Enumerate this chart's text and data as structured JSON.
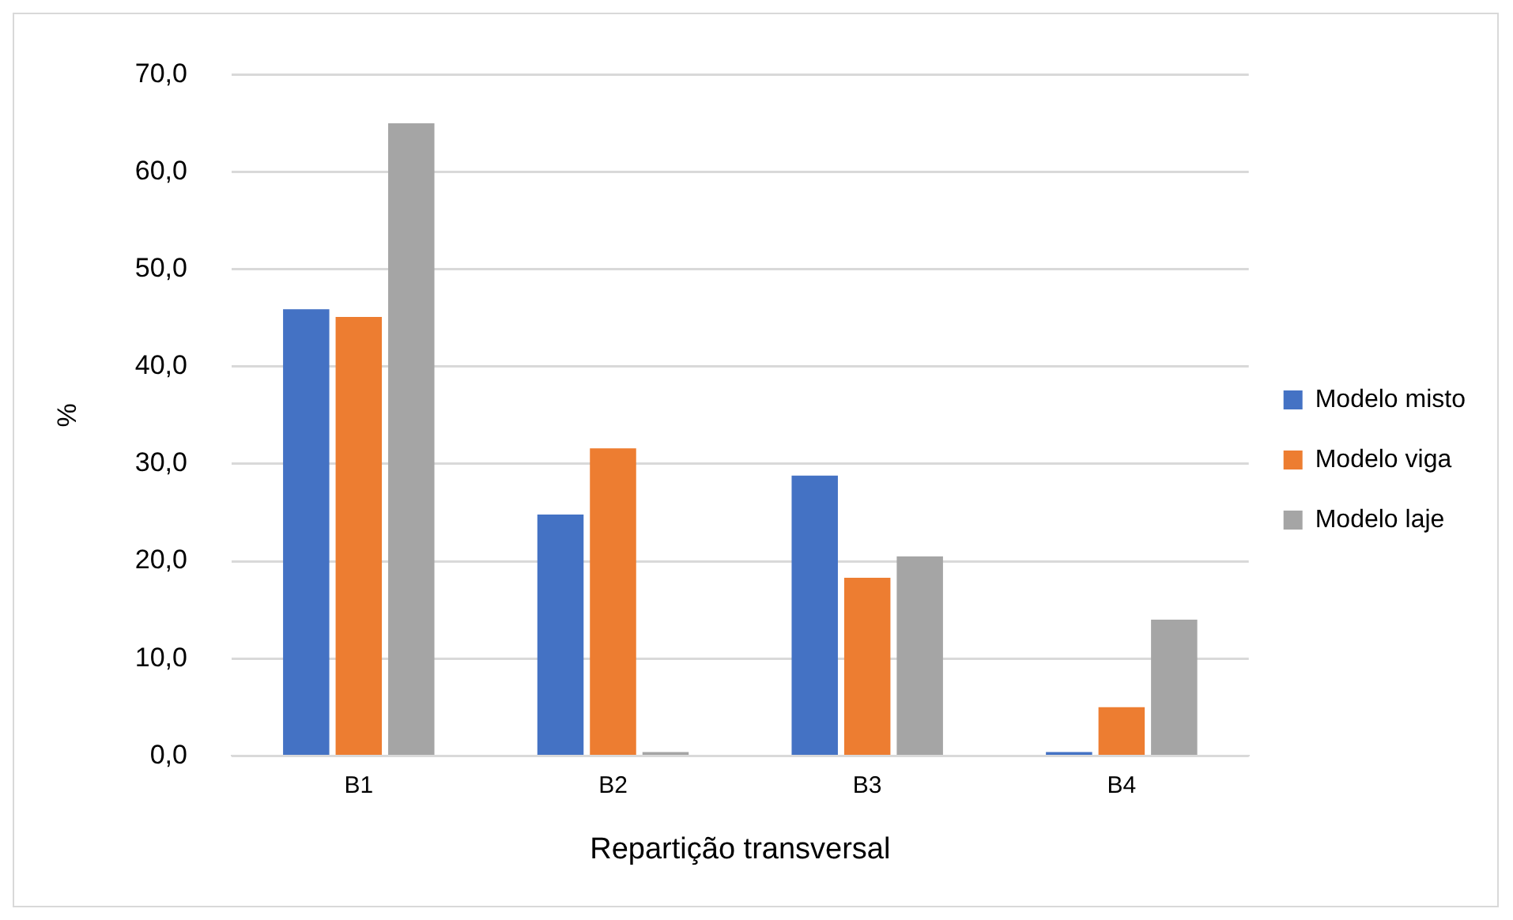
{
  "chart_data": {
    "type": "bar",
    "xlabel": "Repartição transversal",
    "ylabel": "%",
    "categories": [
      "B1",
      "B2",
      "B3",
      "B4"
    ],
    "series": [
      {
        "name": "Modelo misto",
        "color": "#4472c4",
        "values": [
          45.9,
          24.8,
          28.8,
          0.4
        ]
      },
      {
        "name": "Modelo viga",
        "color": "#ed7d31",
        "values": [
          45.1,
          31.6,
          18.3,
          5.0
        ]
      },
      {
        "name": "Modelo laje",
        "color": "#a5a5a5",
        "values": [
          65.0,
          0.4,
          20.5,
          14.0
        ]
      }
    ],
    "ylim": [
      0,
      70
    ],
    "yticks": [
      {
        "value": 0,
        "label": "0,0"
      },
      {
        "value": 10,
        "label": "10,0"
      },
      {
        "value": 20,
        "label": "20,0"
      },
      {
        "value": 30,
        "label": "30,0"
      },
      {
        "value": 40,
        "label": "40,0"
      },
      {
        "value": 50,
        "label": "50,0"
      },
      {
        "value": 60,
        "label": "60,0"
      },
      {
        "value": 70,
        "label": "70,0"
      }
    ],
    "grid": "y",
    "legend": "right"
  }
}
